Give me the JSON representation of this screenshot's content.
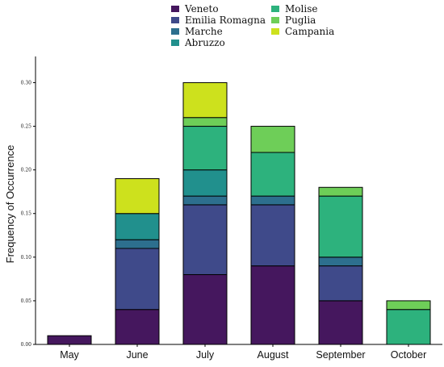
{
  "chart_data": {
    "type": "bar",
    "stacked": true,
    "title": "",
    "xlabel": "",
    "ylabel": "Frequency of Occurrence",
    "ylim": [
      0,
      0.33
    ],
    "yticks": [
      "0.00",
      "0.05",
      "0.10",
      "0.15",
      "0.20",
      "0.25",
      "0.30"
    ],
    "grid": false,
    "legend_position": "top-center",
    "categories": [
      "May",
      "June",
      "July",
      "August",
      "September",
      "October"
    ],
    "series": [
      {
        "name": "Veneto",
        "color": "#45175e",
        "values": [
          0.01,
          0.04,
          0.08,
          0.09,
          0.05,
          0.0
        ]
      },
      {
        "name": "Emilia Romagna",
        "color": "#3f4a8a",
        "values": [
          0.0,
          0.07,
          0.08,
          0.07,
          0.04,
          0.0
        ]
      },
      {
        "name": "Marche",
        "color": "#2d6f8e",
        "values": [
          0.0,
          0.01,
          0.01,
          0.01,
          0.01,
          0.0
        ]
      },
      {
        "name": "Abruzzo",
        "color": "#21908d",
        "values": [
          0.0,
          0.03,
          0.03,
          0.0,
          0.0,
          0.0
        ]
      },
      {
        "name": "Molise",
        "color": "#2db27d",
        "values": [
          0.0,
          0.0,
          0.05,
          0.05,
          0.07,
          0.04
        ]
      },
      {
        "name": "Puglia",
        "color": "#6ece58",
        "values": [
          0.0,
          0.0,
          0.01,
          0.03,
          0.01,
          0.01
        ]
      },
      {
        "name": "Campania",
        "color": "#cde11d",
        "values": [
          0.0,
          0.04,
          0.04,
          0.0,
          0.0,
          0.0
        ]
      }
    ]
  }
}
